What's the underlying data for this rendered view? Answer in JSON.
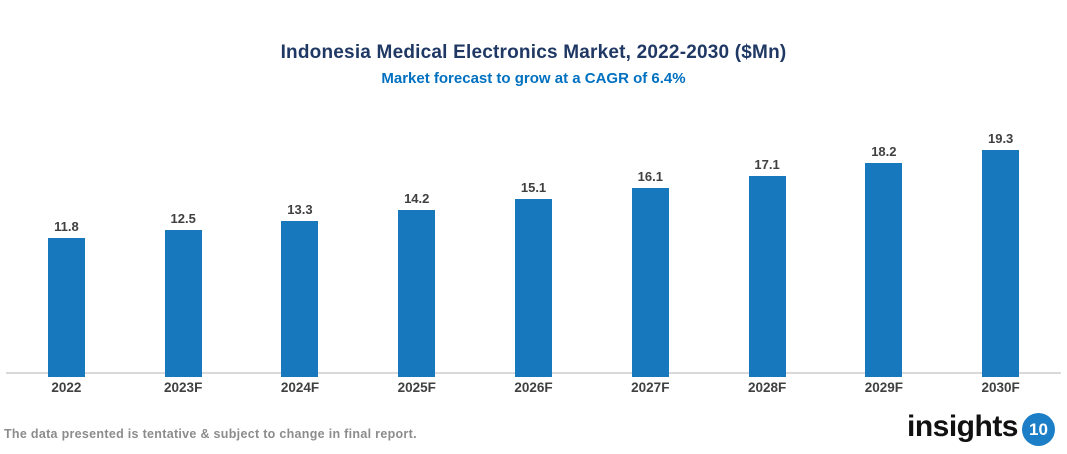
{
  "header": {
    "title": "Indonesia Medical Electronics Market, 2022-2030 ($Mn)",
    "subtitle": "Market forecast to grow at a CAGR of 6.4%"
  },
  "footer": {
    "note": "The data presented is tentative & subject to change in final report.",
    "logo_text": "insights",
    "logo_badge": "10"
  },
  "colors": {
    "bar": "#1878BE",
    "title": "#1F3864",
    "subtitle": "#0070C0",
    "label": "#404040",
    "axis": "#D9D9D9",
    "footer": "#8C8C8C",
    "logo_badge": "#1B7EC6"
  },
  "chart_data": {
    "type": "bar",
    "categories": [
      "2022",
      "2023F",
      "2024F",
      "2025F",
      "2026F",
      "2027F",
      "2028F",
      "2029F",
      "2030F"
    ],
    "values": [
      11.8,
      12.5,
      13.3,
      14.2,
      15.1,
      16.1,
      17.1,
      18.2,
      19.3
    ],
    "title": "Indonesia Medical Electronics Market, 2022-2030 ($Mn)",
    "subtitle": "Market forecast to grow at a CAGR of 6.4%",
    "xlabel": "",
    "ylabel": "",
    "ylim": [
      0,
      20
    ],
    "grid": false,
    "legend": false,
    "data_labels": true,
    "bar_color": "#1878BE"
  }
}
